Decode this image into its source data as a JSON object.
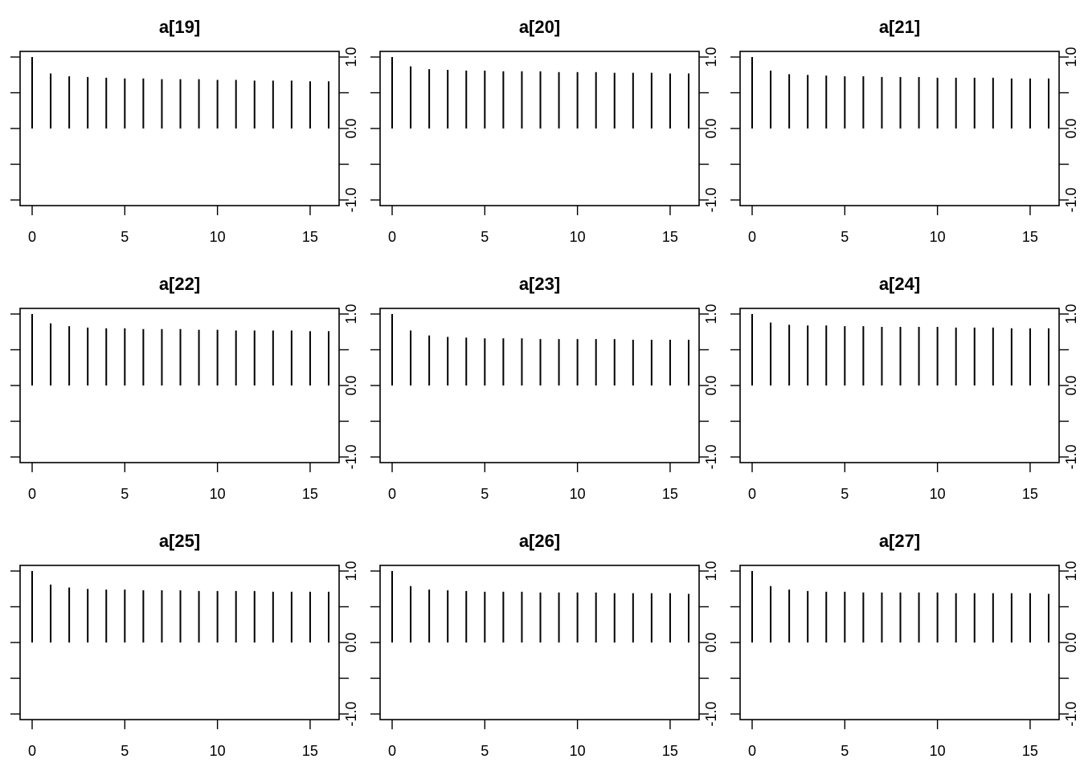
{
  "chart_data": [
    {
      "type": "bar",
      "title": "a[19]",
      "x": [
        0,
        1,
        2,
        3,
        4,
        5,
        6,
        7,
        8,
        9,
        10,
        11,
        12,
        13,
        14,
        15,
        16
      ],
      "values": [
        1.0,
        0.77,
        0.73,
        0.72,
        0.71,
        0.7,
        0.7,
        0.69,
        0.69,
        0.69,
        0.68,
        0.68,
        0.67,
        0.67,
        0.67,
        0.66,
        0.66
      ],
      "xlim": [
        0,
        16
      ],
      "ylim": [
        -1.0,
        1.0
      ],
      "xticks": [
        0,
        5,
        10,
        15
      ],
      "yticks": [
        -1.0,
        -0.5,
        0.0,
        0.5,
        1.0
      ],
      "ytick_labels": [
        "-1.0",
        "",
        "0.0",
        "",
        "1.0"
      ],
      "ytick_labels_side": "right",
      "grid": false
    },
    {
      "type": "bar",
      "title": "a[20]",
      "x": [
        0,
        1,
        2,
        3,
        4,
        5,
        6,
        7,
        8,
        9,
        10,
        11,
        12,
        13,
        14,
        15,
        16
      ],
      "values": [
        1.0,
        0.87,
        0.83,
        0.82,
        0.81,
        0.81,
        0.8,
        0.8,
        0.8,
        0.79,
        0.79,
        0.79,
        0.78,
        0.78,
        0.78,
        0.77,
        0.77
      ],
      "xlim": [
        0,
        16
      ],
      "ylim": [
        -1.0,
        1.0
      ],
      "xticks": [
        0,
        5,
        10,
        15
      ],
      "yticks": [
        -1.0,
        -0.5,
        0.0,
        0.5,
        1.0
      ],
      "ytick_labels": [
        "-1.0",
        "",
        "0.0",
        "",
        "1.0"
      ],
      "ytick_labels_side": "right",
      "grid": false
    },
    {
      "type": "bar",
      "title": "a[21]",
      "x": [
        0,
        1,
        2,
        3,
        4,
        5,
        6,
        7,
        8,
        9,
        10,
        11,
        12,
        13,
        14,
        15,
        16
      ],
      "values": [
        1.0,
        0.81,
        0.76,
        0.75,
        0.74,
        0.73,
        0.73,
        0.72,
        0.72,
        0.72,
        0.71,
        0.71,
        0.71,
        0.71,
        0.7,
        0.7,
        0.7
      ],
      "xlim": [
        0,
        16
      ],
      "ylim": [
        -1.0,
        1.0
      ],
      "xticks": [
        0,
        5,
        10,
        15
      ],
      "yticks": [
        -1.0,
        -0.5,
        0.0,
        0.5,
        1.0
      ],
      "ytick_labels": [
        "-1.0",
        "",
        "0.0",
        "",
        "1.0"
      ],
      "ytick_labels_side": "right",
      "grid": false
    },
    {
      "type": "bar",
      "title": "a[22]",
      "x": [
        0,
        1,
        2,
        3,
        4,
        5,
        6,
        7,
        8,
        9,
        10,
        11,
        12,
        13,
        14,
        15,
        16
      ],
      "values": [
        1.0,
        0.87,
        0.83,
        0.81,
        0.8,
        0.8,
        0.79,
        0.79,
        0.79,
        0.78,
        0.78,
        0.77,
        0.77,
        0.77,
        0.77,
        0.76,
        0.76
      ],
      "xlim": [
        0,
        16
      ],
      "ylim": [
        -1.0,
        1.0
      ],
      "xticks": [
        0,
        5,
        10,
        15
      ],
      "yticks": [
        -1.0,
        -0.5,
        0.0,
        0.5,
        1.0
      ],
      "ytick_labels": [
        "-1.0",
        "",
        "0.0",
        "",
        "1.0"
      ],
      "ytick_labels_side": "right",
      "grid": false
    },
    {
      "type": "bar",
      "title": "a[23]",
      "x": [
        0,
        1,
        2,
        3,
        4,
        5,
        6,
        7,
        8,
        9,
        10,
        11,
        12,
        13,
        14,
        15,
        16
      ],
      "values": [
        1.0,
        0.77,
        0.7,
        0.68,
        0.67,
        0.66,
        0.66,
        0.66,
        0.65,
        0.65,
        0.65,
        0.65,
        0.65,
        0.64,
        0.64,
        0.64,
        0.64
      ],
      "xlim": [
        0,
        16
      ],
      "ylim": [
        -1.0,
        1.0
      ],
      "xticks": [
        0,
        5,
        10,
        15
      ],
      "yticks": [
        -1.0,
        -0.5,
        0.0,
        0.5,
        1.0
      ],
      "ytick_labels": [
        "-1.0",
        "",
        "0.0",
        "",
        "1.0"
      ],
      "ytick_labels_side": "right",
      "grid": false
    },
    {
      "type": "bar",
      "title": "a[24]",
      "x": [
        0,
        1,
        2,
        3,
        4,
        5,
        6,
        7,
        8,
        9,
        10,
        11,
        12,
        13,
        14,
        15,
        16
      ],
      "values": [
        1.0,
        0.88,
        0.85,
        0.84,
        0.84,
        0.83,
        0.83,
        0.82,
        0.82,
        0.82,
        0.82,
        0.81,
        0.81,
        0.81,
        0.8,
        0.8,
        0.8
      ],
      "xlim": [
        0,
        16
      ],
      "ylim": [
        -1.0,
        1.0
      ],
      "xticks": [
        0,
        5,
        10,
        15
      ],
      "yticks": [
        -1.0,
        -0.5,
        0.0,
        0.5,
        1.0
      ],
      "ytick_labels": [
        "-1.0",
        "",
        "0.0",
        "",
        "1.0"
      ],
      "ytick_labels_side": "right",
      "grid": false
    },
    {
      "type": "bar",
      "title": "a[25]",
      "x": [
        0,
        1,
        2,
        3,
        4,
        5,
        6,
        7,
        8,
        9,
        10,
        11,
        12,
        13,
        14,
        15,
        16
      ],
      "values": [
        1.0,
        0.81,
        0.77,
        0.75,
        0.74,
        0.74,
        0.73,
        0.73,
        0.73,
        0.72,
        0.72,
        0.72,
        0.72,
        0.71,
        0.71,
        0.71,
        0.71
      ],
      "xlim": [
        0,
        16
      ],
      "ylim": [
        -1.0,
        1.0
      ],
      "xticks": [
        0,
        5,
        10,
        15
      ],
      "yticks": [
        -1.0,
        -0.5,
        0.0,
        0.5,
        1.0
      ],
      "ytick_labels": [
        "-1.0",
        "",
        "0.0",
        "",
        "1.0"
      ],
      "ytick_labels_side": "right",
      "grid": false
    },
    {
      "type": "bar",
      "title": "a[26]",
      "x": [
        0,
        1,
        2,
        3,
        4,
        5,
        6,
        7,
        8,
        9,
        10,
        11,
        12,
        13,
        14,
        15,
        16
      ],
      "values": [
        1.0,
        0.79,
        0.74,
        0.73,
        0.72,
        0.71,
        0.71,
        0.71,
        0.7,
        0.7,
        0.7,
        0.7,
        0.69,
        0.69,
        0.69,
        0.69,
        0.68
      ],
      "xlim": [
        0,
        16
      ],
      "ylim": [
        -1.0,
        1.0
      ],
      "xticks": [
        0,
        5,
        10,
        15
      ],
      "yticks": [
        -1.0,
        -0.5,
        0.0,
        0.5,
        1.0
      ],
      "ytick_labels": [
        "-1.0",
        "",
        "0.0",
        "",
        "1.0"
      ],
      "ytick_labels_side": "right",
      "grid": false
    },
    {
      "type": "bar",
      "title": "a[27]",
      "x": [
        0,
        1,
        2,
        3,
        4,
        5,
        6,
        7,
        8,
        9,
        10,
        11,
        12,
        13,
        14,
        15,
        16
      ],
      "values": [
        1.0,
        0.79,
        0.74,
        0.72,
        0.71,
        0.71,
        0.7,
        0.7,
        0.7,
        0.7,
        0.7,
        0.69,
        0.69,
        0.69,
        0.69,
        0.69,
        0.68
      ],
      "xlim": [
        0,
        16
      ],
      "ylim": [
        -1.0,
        1.0
      ],
      "xticks": [
        0,
        5,
        10,
        15
      ],
      "yticks": [
        -1.0,
        -0.5,
        0.0,
        0.5,
        1.0
      ],
      "ytick_labels": [
        "-1.0",
        "",
        "0.0",
        "",
        "1.0"
      ],
      "ytick_labels_side": "right",
      "grid": false
    }
  ]
}
